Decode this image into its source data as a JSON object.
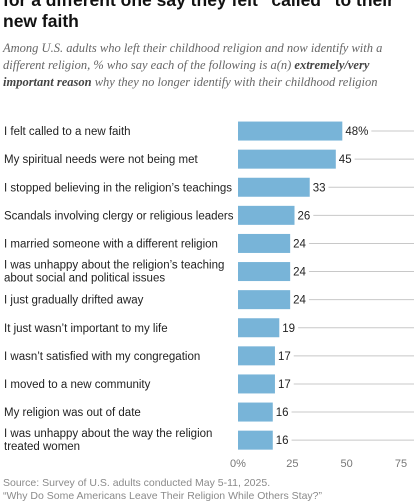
{
  "header": {
    "title": "for a different one say they felt “called” to their new faith",
    "subtitle_part1": "Among U.S. adults who left their childhood religion and now identify with a different religion, % who say each of the following is a(n) ",
    "subtitle_emphasis": "extremely/very important reason",
    "subtitle_part2": " why they no longer identify with their childhood religion"
  },
  "chart_data": {
    "type": "bar",
    "orientation": "horizontal",
    "categories": [
      [
        "I felt called to a new faith"
      ],
      [
        "My spiritual needs were not being met"
      ],
      [
        "I stopped believing in the religion’s teachings"
      ],
      [
        "Scandals involving clergy or religious leaders"
      ],
      [
        "I married someone with a different religion"
      ],
      [
        "I was unhappy about the religion’s teaching",
        "about social and political issues"
      ],
      [
        "I just gradually drifted away"
      ],
      [
        "It just wasn’t important to my life"
      ],
      [
        "I wasn’t satisfied with my congregation"
      ],
      [
        "I moved to a new community"
      ],
      [
        "My religion was out of date"
      ],
      [
        "I was unhappy about the way the religion",
        "treated women"
      ]
    ],
    "values": [
      48,
      45,
      33,
      26,
      24,
      24,
      24,
      19,
      17,
      17,
      16,
      16
    ],
    "value_labels": [
      "48%",
      "45",
      "33",
      "26",
      "24",
      "24",
      "24",
      "19",
      "17",
      "17",
      "16",
      "16"
    ],
    "xlim": [
      0,
      75
    ],
    "xticks": [
      0,
      25,
      50,
      75
    ],
    "xtick_labels": [
      "0%",
      "25",
      "50",
      "75"
    ],
    "bar_color": "#78b4d8",
    "grid": false
  },
  "footer": {
    "source": "Source: Survey of U.S. adults conducted May 5-11, 2025.",
    "report": "“Why Do Some Americans Leave Their Religion While Others Stay?”"
  }
}
